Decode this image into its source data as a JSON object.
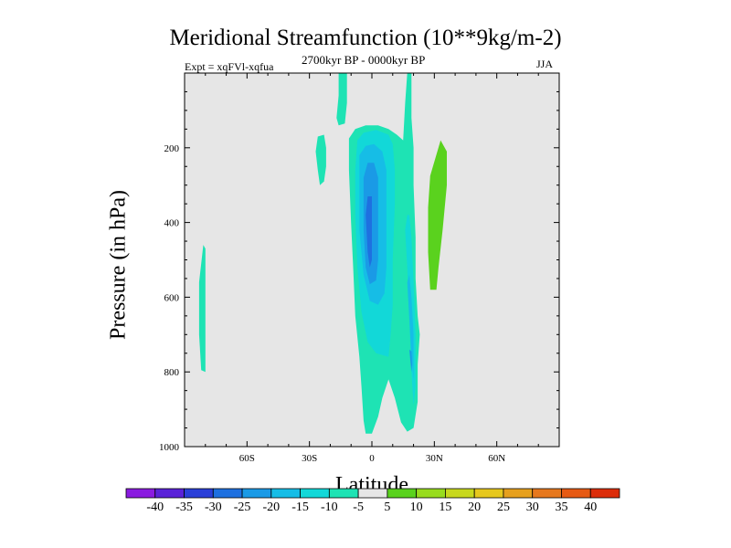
{
  "chart_data": {
    "type": "contour",
    "title": "Meridional Streamfunction (10**9kg/m-2)",
    "left_label": "Expt = xqFVl-xqfua",
    "center_label": "2700kyr BP - 0000kyr BP",
    "right_label": "JJA",
    "xlabel": "Latitude",
    "ylabel": "Pressure (in hPa)",
    "xlim": [
      -90,
      90
    ],
    "ylim": [
      1000,
      0
    ],
    "x_ticks": [
      {
        "value": -60,
        "label": "60S"
      },
      {
        "value": -30,
        "label": "30S"
      },
      {
        "value": 0,
        "label": "0"
      },
      {
        "value": 30,
        "label": "30N"
      },
      {
        "value": 60,
        "label": "60N"
      }
    ],
    "y_ticks": [
      {
        "value": 200,
        "label": "200"
      },
      {
        "value": 400,
        "label": "400"
      },
      {
        "value": 600,
        "label": "600"
      },
      {
        "value": 800,
        "label": "800"
      },
      {
        "value": 1000,
        "label": "1000"
      }
    ],
    "background_color": "#e6e6e6",
    "colorbar": {
      "levels": [
        "-40",
        "-35",
        "-30",
        "-25",
        "-20",
        "-15",
        "-10",
        "-5",
        "5",
        "10",
        "15",
        "20",
        "25",
        "30",
        "35",
        "40"
      ],
      "colors": [
        "#8a1be0",
        "#5a22d8",
        "#2a3fd8",
        "#1e70e0",
        "#1a9ae6",
        "#16bde6",
        "#12d8d8",
        "#1ee3b4",
        "#e6e6e6",
        "#5ad21e",
        "#98dc1e",
        "#c8d81e",
        "#e6c81e",
        "#e6a01e",
        "#e6781e",
        "#e65a14",
        "#dc2d0a"
      ]
    },
    "regions": [
      {
        "level_index": 7,
        "points": [
          [
            -8,
            650
          ],
          [
            -6,
            760
          ],
          [
            -5,
            840
          ],
          [
            -4,
            930
          ],
          [
            -3,
            965
          ],
          [
            0,
            965
          ],
          [
            3,
            920
          ],
          [
            5,
            870
          ],
          [
            8,
            820
          ],
          [
            11,
            870
          ],
          [
            14,
            935
          ],
          [
            17,
            960
          ],
          [
            20,
            950
          ],
          [
            22,
            880
          ],
          [
            22,
            780
          ],
          [
            23,
            700
          ],
          [
            22,
            650
          ],
          [
            21,
            550
          ],
          [
            21,
            440
          ],
          [
            20,
            300
          ],
          [
            20,
            200
          ],
          [
            19,
            120
          ],
          [
            19,
            0
          ],
          [
            17,
            0
          ],
          [
            16,
            80
          ],
          [
            15,
            180
          ],
          [
            12,
            165
          ],
          [
            8,
            150
          ],
          [
            3,
            140
          ],
          [
            -3,
            140
          ],
          [
            -8,
            150
          ],
          [
            -11,
            175
          ],
          [
            -11,
            260
          ],
          [
            -10,
            400
          ],
          [
            -9,
            520
          ]
        ]
      },
      {
        "level_index": 6,
        "points": [
          [
            -7,
            180
          ],
          [
            -4,
            160
          ],
          [
            2,
            152
          ],
          [
            8,
            165
          ],
          [
            10,
            190
          ],
          [
            11,
            260
          ],
          [
            11,
            350
          ],
          [
            10,
            500
          ],
          [
            10,
            620
          ],
          [
            9,
            700
          ],
          [
            8,
            760
          ],
          [
            2,
            750
          ],
          [
            -2,
            720
          ],
          [
            -5,
            640
          ],
          [
            -7,
            520
          ],
          [
            -8,
            380
          ],
          [
            -8,
            260
          ]
        ]
      },
      {
        "level_index": 6,
        "points": [
          [
            16,
            420
          ],
          [
            17,
            520
          ],
          [
            18,
            660
          ],
          [
            19,
            800
          ],
          [
            20,
            890
          ],
          [
            21,
            840
          ],
          [
            21,
            700
          ],
          [
            20,
            560
          ],
          [
            19,
            440
          ],
          [
            18,
            380
          ],
          [
            17,
            380
          ]
        ]
      },
      {
        "level_index": 5,
        "points": [
          [
            -6,
            220
          ],
          [
            -3,
            195
          ],
          [
            1,
            190
          ],
          [
            5,
            210
          ],
          [
            7,
            260
          ],
          [
            7,
            400
          ],
          [
            7,
            520
          ],
          [
            6,
            590
          ],
          [
            3,
            620
          ],
          [
            -1,
            610
          ],
          [
            -4,
            540
          ],
          [
            -6,
            420
          ],
          [
            -6,
            300
          ]
        ]
      },
      {
        "level_index": 5,
        "points": [
          [
            17,
            560
          ],
          [
            18,
            660
          ],
          [
            19,
            760
          ],
          [
            20,
            820
          ],
          [
            20,
            700
          ],
          [
            19,
            600
          ],
          [
            18,
            540
          ]
        ]
      },
      {
        "level_index": 4,
        "points": [
          [
            -4,
            280
          ],
          [
            -2,
            240
          ],
          [
            1,
            240
          ],
          [
            3,
            280
          ],
          [
            3,
            400
          ],
          [
            3,
            500
          ],
          [
            2,
            555
          ],
          [
            -1,
            565
          ],
          [
            -3,
            520
          ],
          [
            -4,
            420
          ]
        ]
      },
      {
        "level_index": 3,
        "points": [
          [
            -3,
            380
          ],
          [
            -2,
            330
          ],
          [
            0,
            330
          ],
          [
            0,
            420
          ],
          [
            0,
            500
          ],
          [
            -1,
            520
          ],
          [
            -2,
            480
          ]
        ]
      },
      {
        "level_index": 4,
        "points": [
          [
            18,
            740
          ],
          [
            18.5,
            770
          ],
          [
            19,
            800
          ],
          [
            19.3,
            780
          ],
          [
            19,
            745
          ]
        ]
      },
      {
        "level_index": 7,
        "points": [
          [
            -16,
            0
          ],
          [
            -12,
            0
          ],
          [
            -12,
            80
          ],
          [
            -13,
            135
          ],
          [
            -16,
            140
          ],
          [
            -17,
            120
          ],
          [
            -16,
            60
          ]
        ]
      },
      {
        "level_index": 7,
        "points": [
          [
            -26,
            170
          ],
          [
            -23,
            165
          ],
          [
            -22,
            200
          ],
          [
            -22,
            250
          ],
          [
            -23,
            290
          ],
          [
            -25,
            300
          ],
          [
            -26,
            260
          ],
          [
            -27,
            210
          ]
        ]
      },
      {
        "level_index": 7,
        "points": [
          [
            -81,
            460
          ],
          [
            -80,
            470
          ],
          [
            -80,
            560
          ],
          [
            -80,
            700
          ],
          [
            -80,
            800
          ],
          [
            -82,
            795
          ],
          [
            -83,
            700
          ],
          [
            -83,
            560
          ]
        ]
      },
      {
        "level_index": 9,
        "points": [
          [
            28,
            275
          ],
          [
            33,
            180
          ],
          [
            36,
            210
          ],
          [
            36,
            300
          ],
          [
            34,
            420
          ],
          [
            32,
            520
          ],
          [
            31,
            580
          ],
          [
            28,
            580
          ],
          [
            27,
            480
          ],
          [
            27,
            360
          ]
        ]
      }
    ]
  }
}
